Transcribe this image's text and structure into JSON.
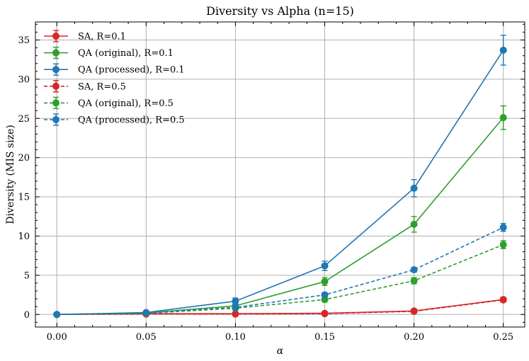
{
  "chart_data": {
    "type": "line",
    "title": "Diversity vs Alpha (n=15)",
    "xlabel": "α",
    "ylabel": "Diversity (MIS size)",
    "x": [
      0.0,
      0.05,
      0.1,
      0.15,
      0.2,
      0.25
    ],
    "x_tick_labels": [
      "0.00",
      "0.05",
      "0.10",
      "0.15",
      "0.20",
      "0.25"
    ],
    "xlim": [
      -0.012,
      0.262
    ],
    "ylim": [
      -1.6,
      37.3
    ],
    "y_ticks": [
      0,
      5,
      10,
      15,
      20,
      25,
      30,
      35
    ],
    "y_tick_labels": [
      "0",
      "5",
      "10",
      "15",
      "20",
      "25",
      "30",
      "35"
    ],
    "grid": true,
    "legend_position": "top-left",
    "series": [
      {
        "name": "SA, R=0.1",
        "color": "#d62728",
        "linestyle": "solid",
        "values": [
          0,
          0.1,
          0.1,
          0.15,
          0.45,
          1.9
        ],
        "errors": [
          0,
          0.1,
          0.1,
          0.1,
          0.2,
          0.3
        ]
      },
      {
        "name": "QA (original), R=0.1",
        "color": "#2ca02c",
        "linestyle": "solid",
        "values": [
          0,
          0.2,
          1.1,
          4.2,
          11.5,
          25.1
        ],
        "errors": [
          0,
          0.1,
          0.3,
          0.5,
          1.0,
          1.5
        ]
      },
      {
        "name": "QA (processed), R=0.1",
        "color": "#1f77b4",
        "linestyle": "solid",
        "values": [
          0,
          0.25,
          1.7,
          6.2,
          16.1,
          33.7
        ],
        "errors": [
          0,
          0.1,
          0.4,
          0.6,
          1.1,
          1.9
        ]
      },
      {
        "name": "SA, R=0.5",
        "color": "#d62728",
        "linestyle": "dashed",
        "values": [
          0,
          0.05,
          0.05,
          0.1,
          0.4,
          1.85
        ],
        "errors": [
          0,
          0.05,
          0.05,
          0.05,
          0.1,
          0.2
        ]
      },
      {
        "name": "QA (original), R=0.5",
        "color": "#2ca02c",
        "linestyle": "dashed",
        "values": [
          0,
          0.15,
          0.8,
          1.9,
          4.3,
          8.9
        ],
        "errors": [
          0,
          0.05,
          0.15,
          0.3,
          0.4,
          0.5
        ]
      },
      {
        "name": "QA (processed), R=0.5",
        "color": "#1f77b4",
        "linestyle": "dashed",
        "values": [
          0,
          0.2,
          0.9,
          2.5,
          5.7,
          11.1
        ],
        "errors": [
          0,
          0.05,
          0.15,
          0.3,
          0.3,
          0.5
        ]
      }
    ]
  }
}
